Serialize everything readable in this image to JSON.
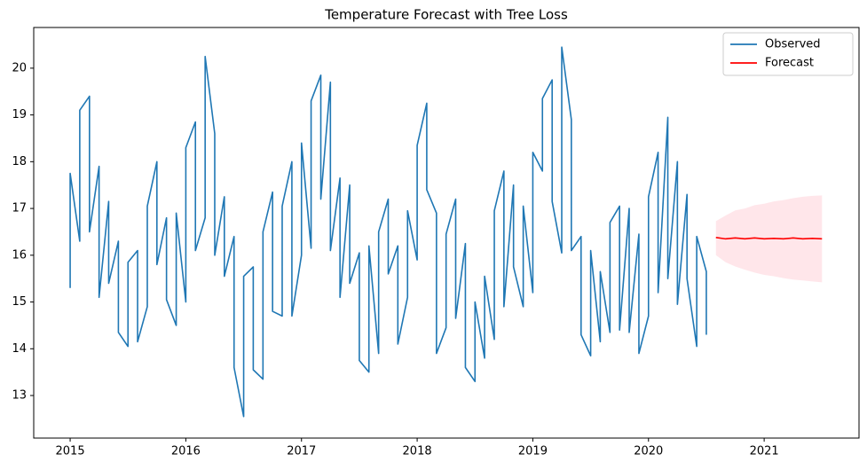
{
  "chart_data": {
    "type": "line",
    "title": "Temperature Forecast with Tree Loss",
    "xlim": [
      2014.685,
      2021.82
    ],
    "xticks": [
      2015,
      2016,
      2017,
      2018,
      2019,
      2020,
      2021
    ],
    "ylim": [
      12.09,
      20.87
    ],
    "yticks": [
      13,
      14,
      15,
      16,
      17,
      18,
      19,
      20
    ],
    "legend": "upper right",
    "series": [
      {
        "name": "Observed",
        "color": "#1f77b4",
        "x": [
          2015,
          2015,
          2015.083,
          2015.083,
          2015.167,
          2015.167,
          2015.25,
          2015.25,
          2015.333,
          2015.333,
          2015.417,
          2015.417,
          2015.5,
          2015.5,
          2015.583,
          2015.583,
          2015.667,
          2015.667,
          2015.75,
          2015.75,
          2015.833,
          2015.833,
          2015.917,
          2015.917,
          2016,
          2016,
          2016.083,
          2016.083,
          2016.167,
          2016.167,
          2016.25,
          2016.25,
          2016.333,
          2016.333,
          2016.417,
          2016.417,
          2016.5,
          2016.5,
          2016.583,
          2016.583,
          2016.667,
          2016.667,
          2016.75,
          2016.75,
          2016.833,
          2016.833,
          2016.917,
          2016.917,
          2017,
          2017,
          2017.083,
          2017.083,
          2017.167,
          2017.167,
          2017.25,
          2017.25,
          2017.333,
          2017.333,
          2017.417,
          2017.417,
          2017.5,
          2017.5,
          2017.583,
          2017.583,
          2017.667,
          2017.667,
          2017.75,
          2017.75,
          2017.833,
          2017.833,
          2017.917,
          2017.917,
          2018,
          2018,
          2018.083,
          2018.083,
          2018.167,
          2018.167,
          2018.25,
          2018.25,
          2018.333,
          2018.333,
          2018.417,
          2018.417,
          2018.5,
          2018.5,
          2018.583,
          2018.583,
          2018.667,
          2018.667,
          2018.75,
          2018.75,
          2018.833,
          2018.833,
          2018.917,
          2018.917,
          2019,
          2019,
          2019.083,
          2019.083,
          2019.167,
          2019.167,
          2019.25,
          2019.25,
          2019.333,
          2019.333,
          2019.417,
          2019.417,
          2019.5,
          2019.5,
          2019.583,
          2019.583,
          2019.667,
          2019.667,
          2019.75,
          2019.75,
          2019.833,
          2019.833,
          2019.917,
          2019.917,
          2020,
          2020,
          2020.083,
          2020.083,
          2020.167,
          2020.167,
          2020.25,
          2020.25,
          2020.333,
          2020.333,
          2020.417,
          2020.417,
          2020.5,
          2020.5
        ],
        "values": [
          15.3,
          17.75,
          16.3,
          19.1,
          19.4,
          16.5,
          17.9,
          15.1,
          17.15,
          15.4,
          16.3,
          14.35,
          14.05,
          15.85,
          16.1,
          14.15,
          14.9,
          17.05,
          18.0,
          15.8,
          16.8,
          15.05,
          14.5,
          16.9,
          15.0,
          18.3,
          18.85,
          16.1,
          16.8,
          20.25,
          18.6,
          16.0,
          17.25,
          15.55,
          16.4,
          13.6,
          12.55,
          15.55,
          15.75,
          13.55,
          13.35,
          16.5,
          17.35,
          14.8,
          14.7,
          17.05,
          18.0,
          14.7,
          16.0,
          18.4,
          16.15,
          19.3,
          19.85,
          17.2,
          19.7,
          16.1,
          17.65,
          15.1,
          17.5,
          15.4,
          16.05,
          13.75,
          13.5,
          16.2,
          13.9,
          16.5,
          17.2,
          15.6,
          16.2,
          14.1,
          15.1,
          16.95,
          15.9,
          18.35,
          19.25,
          17.4,
          16.9,
          13.9,
          14.45,
          16.45,
          17.2,
          14.65,
          16.25,
          13.6,
          13.3,
          15.0,
          13.8,
          15.55,
          14.2,
          16.95,
          17.8,
          14.9,
          17.5,
          15.75,
          14.9,
          17.05,
          15.2,
          18.2,
          17.8,
          19.35,
          19.75,
          17.15,
          16.05,
          20.45,
          18.9,
          16.1,
          16.4,
          14.3,
          13.85,
          16.1,
          14.15,
          15.65,
          14.35,
          16.7,
          17.05,
          14.4,
          17.0,
          14.35,
          16.45,
          13.9,
          14.7,
          17.25,
          18.2,
          15.2,
          18.95,
          15.5,
          18.0,
          14.95,
          17.3,
          15.5,
          14.05,
          16.4,
          15.65,
          14.3
        ]
      },
      {
        "name": "Forecast",
        "color": "red",
        "band_color": "#ffc0cb",
        "x": [
          2020.583,
          2020.667,
          2020.75,
          2020.833,
          2020.917,
          2021,
          2021.083,
          2021.167,
          2021.25,
          2021.333,
          2021.417,
          2021.5
        ],
        "values": [
          16.38,
          16.35,
          16.37,
          16.35,
          16.37,
          16.35,
          16.36,
          16.35,
          16.37,
          16.35,
          16.36,
          16.35
        ],
        "lower": [
          16.0,
          15.85,
          15.76,
          15.69,
          15.63,
          15.58,
          15.55,
          15.51,
          15.48,
          15.46,
          15.44,
          15.42
        ],
        "upper": [
          16.73,
          16.85,
          16.96,
          17.0,
          17.07,
          17.1,
          17.15,
          17.18,
          17.22,
          17.25,
          17.27,
          17.28
        ]
      }
    ]
  }
}
